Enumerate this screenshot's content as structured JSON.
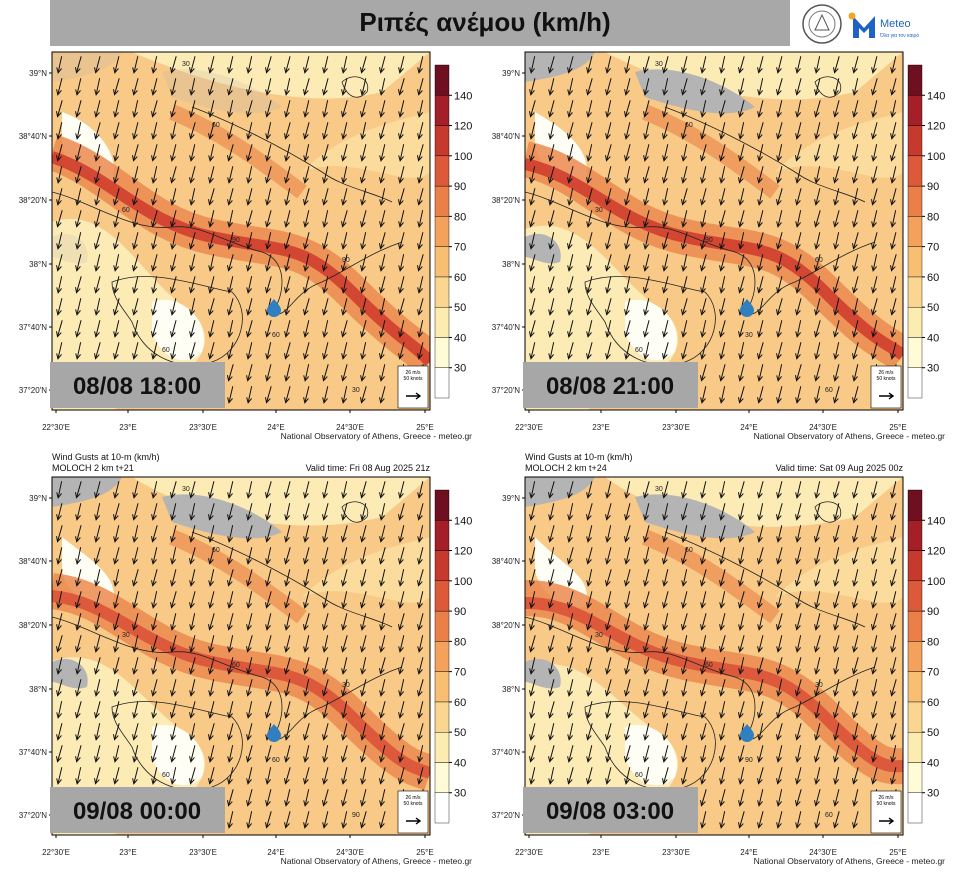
{
  "header": {
    "title": "Ριπές ανέμου (km/h)",
    "logo_text": "Meteo",
    "logo_tagline": "Όλα για τον καιρό"
  },
  "map": {
    "lat_labels": [
      "39°N",
      "38°40'N",
      "38°20'N",
      "38°N",
      "37°40'N",
      "37°20'N"
    ],
    "lon_labels": [
      "22°30'E",
      "23°E",
      "23°30'E",
      "24°E",
      "24°30'E",
      "25°E"
    ],
    "credit": "National Observatory of Athens, Greece - meteo.gr",
    "scale_speed": "26 m/s",
    "scale_knots": "50 knots",
    "colorbar_ticks": [
      30,
      40,
      50,
      60,
      70,
      80,
      90,
      100,
      120,
      140
    ],
    "colorbar_colors": [
      "#ffffff",
      "#fffbd6",
      "#fdecb0",
      "#fbd690",
      "#f8bf72",
      "#f3a15b",
      "#ea7f48",
      "#dc5a39",
      "#c63a2d",
      "#a41f27",
      "#6e1020"
    ]
  },
  "panels": [
    {
      "time_label": "08/08 18:00",
      "contour_labels": [
        30,
        60,
        60,
        90,
        90,
        60,
        30,
        60
      ]
    },
    {
      "time_label": "08/08 21:00",
      "contour_labels": [
        30,
        60,
        30,
        90,
        60,
        30,
        60,
        60
      ]
    },
    {
      "time_label": "09/08 00:00",
      "product": "Wind Gusts at 10-m (km/h)",
      "model": "MOLOCH 2 km t+21",
      "valid_time": "Valid time: Fri 08 Aug 2025 21z",
      "contour_labels": [
        30,
        60,
        30,
        60,
        30,
        60,
        90,
        60
      ]
    },
    {
      "time_label": "09/08 03:00",
      "product": "Wind Gusts at 10-m (km/h)",
      "model": "MOLOCH 2 km t+24",
      "valid_time": "Valid time: Sat 09 Aug 2025 00z",
      "contour_labels": [
        30,
        60,
        30,
        60,
        30,
        90,
        60,
        60
      ]
    }
  ]
}
